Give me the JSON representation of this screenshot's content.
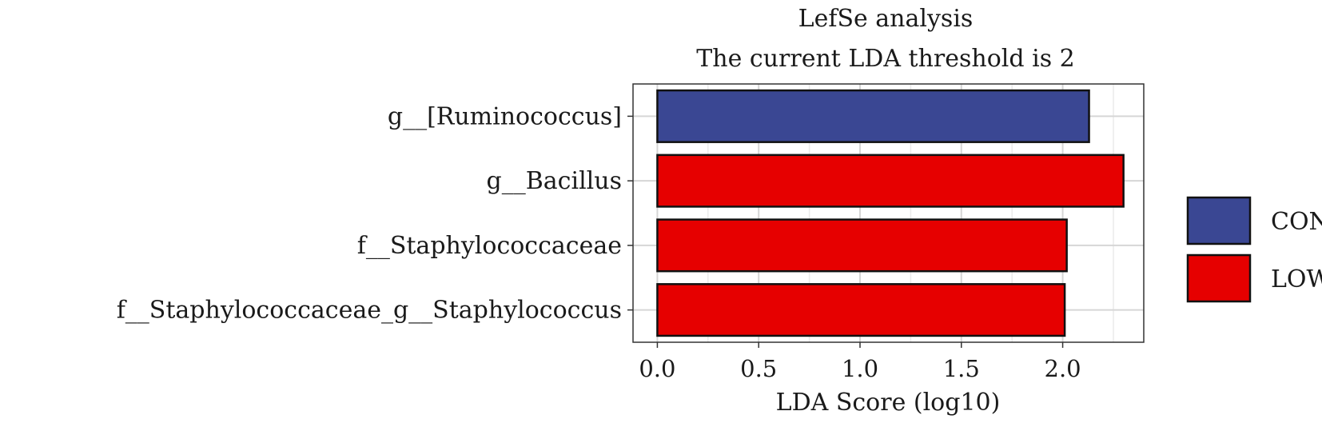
{
  "chart_data": {
    "type": "bar",
    "orientation": "horizontal",
    "title": "LefSe analysis",
    "subtitle": "The current LDA threshold is 2",
    "xlabel": "LDA Score (log10)",
    "ylabel": "",
    "xlim": [
      -0.12,
      2.4
    ],
    "xticks": [
      0.0,
      0.5,
      1.0,
      1.5,
      2.0
    ],
    "tick_labels": [
      "0.0",
      "0.5",
      "1.0",
      "1.5",
      "2.0"
    ],
    "grid": true,
    "legend_position": "right",
    "categories": [
      "g__[Ruminococcus]",
      "g__Bacillus",
      "f__Staphylococcaceae",
      "f__Staphylococcaceae_g__Staphylococcus"
    ],
    "values": [
      2.13,
      2.3,
      2.02,
      2.01
    ],
    "groups": [
      "CON",
      "LOW",
      "LOW",
      "LOW"
    ],
    "legend": [
      {
        "name": "CON",
        "color": "#3a4793"
      },
      {
        "name": "LOW",
        "color": "#e60000"
      }
    ]
  }
}
